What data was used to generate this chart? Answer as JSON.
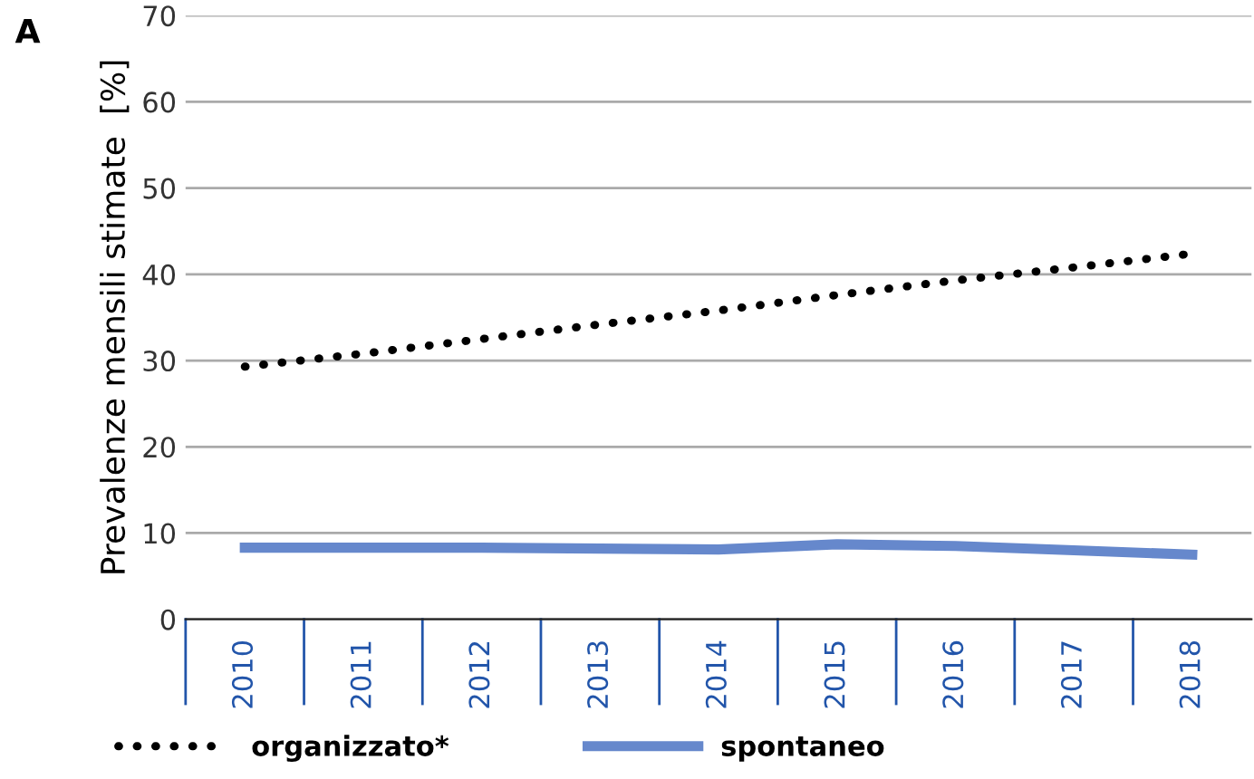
{
  "chart_data": {
    "type": "line",
    "ylabel": "Prevalenze mensili stimate  [%]",
    "annotations": [
      "A"
    ],
    "categories": [
      "2010",
      "2011",
      "2012",
      "2013",
      "2014",
      "2015",
      "2016",
      "2017",
      "2018"
    ],
    "series": [
      {
        "name": "organizzato*",
        "color": "#000000",
        "line_style": "dotted",
        "values": [
          29.3,
          30.8,
          32.5,
          34.2,
          35.8,
          37.6,
          39.3,
          40.8,
          42.4
        ]
      },
      {
        "name": "spontaneo",
        "color": "#6688cc",
        "line_style": "solid",
        "values": [
          8.3,
          8.3,
          8.3,
          8.2,
          8.1,
          8.7,
          8.5,
          8.0,
          7.5
        ]
      }
    ],
    "ylim": [
      0,
      70
    ],
    "yticks": [
      0,
      10,
      20,
      30,
      40,
      50,
      60,
      70
    ],
    "grid": "y",
    "legend": "bottom"
  }
}
